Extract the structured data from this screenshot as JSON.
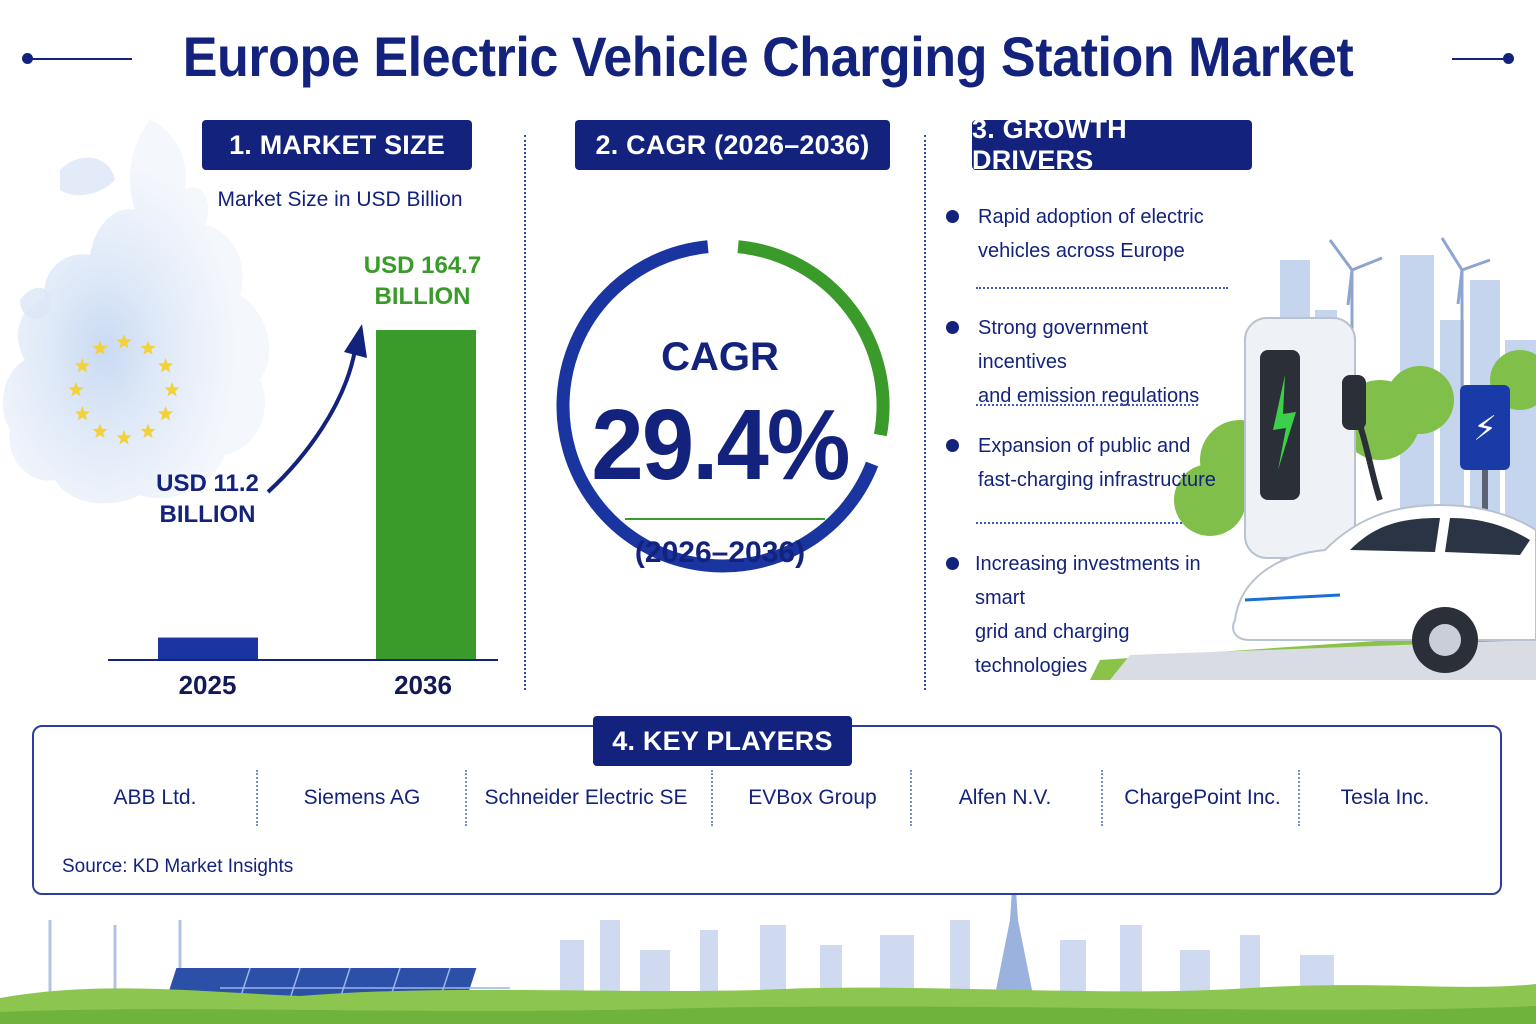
{
  "title": "Europe Electric Vehicle Charging Station Market",
  "sections": {
    "market_size": "1. MARKET SIZE",
    "cagr": "2. CAGR (2026–2036)",
    "drivers": "3. GROWTH DRIVERS",
    "players": "4. KEY PLAYERS"
  },
  "market_size": {
    "subtitle": "Market Size in USD Billion",
    "bars": [
      {
        "year": "2025",
        "label_line1": "USD 11.2",
        "label_line2": "BILLION",
        "value": 11.2,
        "color": "#1a34a0"
      },
      {
        "year": "2036",
        "label_line1": "USD 164.7",
        "label_line2": "BILLION",
        "value": 164.7,
        "color": "#3a9a2a"
      }
    ]
  },
  "cagr": {
    "word": "CAGR",
    "value_text": "29.4%",
    "value": 29.4,
    "period": "(2026–2036)"
  },
  "drivers": [
    {
      "line1": "Rapid adoption of electric",
      "line2": "vehicles across Europe"
    },
    {
      "line1": "Strong government incentives",
      "line2": "and emission regulations"
    },
    {
      "line1": "Expansion of public and",
      "line2": "fast-charging infrastructure"
    },
    {
      "line1": "Increasing investments in smart",
      "line2": "grid and charging technologies"
    }
  ],
  "players": [
    "ABB Ltd.",
    "Siemens AG",
    "Schneider Electric SE",
    "EVBox Group",
    "Alfen N.V.",
    "ChargePoint Inc.",
    "Tesla Inc."
  ],
  "source": "Source:  KD Market Insights",
  "colors": {
    "navy": "#13237d",
    "blue": "#1a34a0",
    "green": "#3a9a2a"
  },
  "chart_data": {
    "type": "bar",
    "title": "Market Size in USD Billion",
    "categories": [
      "2025",
      "2036"
    ],
    "values": [
      11.2,
      164.7
    ],
    "data_labels": [
      "USD 11.2 BILLION",
      "USD 164.7 BILLION"
    ],
    "ylim": [
      0,
      164.7
    ],
    "grid": false
  }
}
